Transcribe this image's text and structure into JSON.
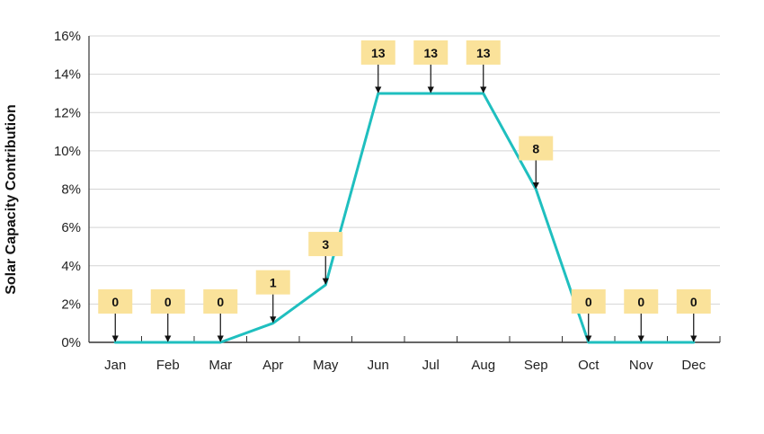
{
  "chart_data": {
    "type": "line",
    "title": "",
    "xlabel": "",
    "ylabel": "Solar Capacity Contribution",
    "categories": [
      "Jan",
      "Feb",
      "Mar",
      "Apr",
      "May",
      "Jun",
      "Jul",
      "Aug",
      "Sep",
      "Oct",
      "Nov",
      "Dec"
    ],
    "values": [
      0,
      0,
      0,
      1,
      3,
      13,
      13,
      13,
      8,
      0,
      0,
      0
    ],
    "data_labels": [
      "0",
      "0",
      "0",
      "1",
      "3",
      "13",
      "13",
      "13",
      "8",
      "0",
      "0",
      "0"
    ],
    "yticks": [
      "0%",
      "2%",
      "4%",
      "6%",
      "8%",
      "10%",
      "12%",
      "14%",
      "16%"
    ],
    "ylim": [
      0,
      16
    ],
    "grid": true,
    "legend": "none",
    "colors": {
      "line": "#1fbfbf",
      "callout_fill": "#fae29a",
      "grid": "#d4d4d4",
      "axis": "#333333"
    }
  }
}
